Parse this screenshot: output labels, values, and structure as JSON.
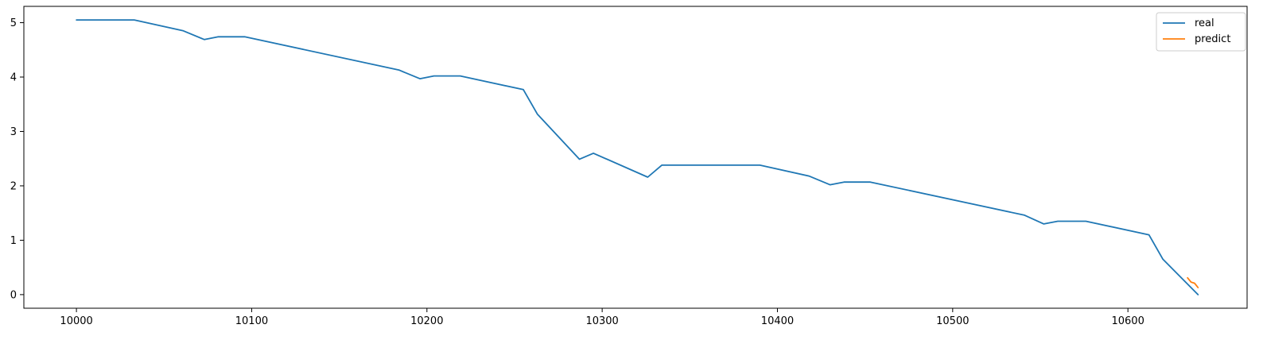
{
  "chart_data": {
    "type": "line",
    "title": "",
    "xlabel": "",
    "ylabel": "",
    "xlim": [
      9970,
      10668
    ],
    "ylim": [
      -0.25,
      5.3
    ],
    "xticks": [
      10000,
      10100,
      10200,
      10300,
      10400,
      10500,
      10600
    ],
    "yticks": [
      0,
      1,
      2,
      3,
      4,
      5
    ],
    "grid": false,
    "legend_position": "top-right",
    "series": [
      {
        "name": "real",
        "color": "#1f77b4",
        "x": [
          10000,
          10033,
          10061,
          10073,
          10081,
          10096,
          10184,
          10196,
          10204,
          10219,
          10255,
          10263,
          10287,
          10295,
          10326,
          10334,
          10390,
          10418,
          10430,
          10438,
          10453,
          10541,
          10552,
          10560,
          10576,
          10612,
          10620,
          10640
        ],
        "y": [
          5.05,
          5.05,
          4.85,
          4.69,
          4.74,
          4.74,
          4.13,
          3.97,
          4.02,
          4.02,
          3.77,
          3.32,
          2.49,
          2.6,
          2.16,
          2.38,
          2.38,
          2.18,
          2.02,
          2.07,
          2.07,
          1.46,
          1.3,
          1.35,
          1.35,
          1.1,
          0.65,
          0.0
        ]
      },
      {
        "name": "predict",
        "color": "#ff7f0e",
        "x": [
          10634,
          10636,
          10638,
          10639,
          10640
        ],
        "y": [
          0.31,
          0.23,
          0.21,
          0.17,
          0.13
        ]
      }
    ]
  }
}
